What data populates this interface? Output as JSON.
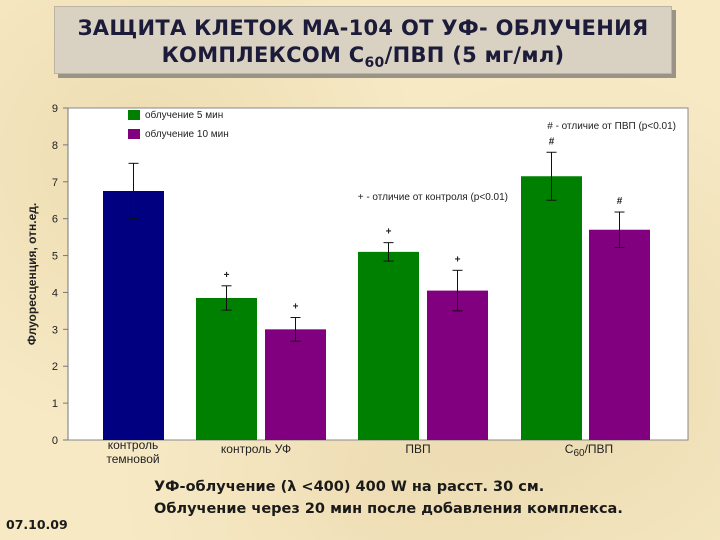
{
  "title": {
    "line1": "ЗАЩИТА КЛЕТОК МА-104 ОТ УФ- ОБЛУЧЕНИЯ",
    "line2_prefix": "КОМПЛЕКСОМ С",
    "line2_sub": "60",
    "line2_suffix": "/ПВП (5 мг/мл)"
  },
  "notes": {
    "line1": "УФ-облучение (λ <400) 400 W на расст. 30 см.",
    "line2": "Облучение через 20 мин после добавления комплекса."
  },
  "date": "07.10.09",
  "annotations": {
    "hash_note": "# - отличие от ПВП (p<0.01)",
    "plus_note": "+ - отличие от контроля (p<0.01)"
  },
  "colors": {
    "dark_blue": "#000080",
    "green": "#008000",
    "purple": "#800080"
  },
  "chart_data": {
    "type": "bar",
    "ylabel": "Флуоресценция, отн.ед.",
    "ylim": [
      0,
      9
    ],
    "yticks": [
      0,
      1,
      2,
      3,
      4,
      5,
      6,
      7,
      8,
      9
    ],
    "grid": false,
    "legend_position": "top-left",
    "categories": [
      "контроль темновой",
      "контроль УФ",
      "ПВП",
      "С60/ПВП"
    ],
    "legend": [
      "облучение 5 мин",
      "облучение 10 мин"
    ],
    "bars": [
      {
        "category": "контроль темновой",
        "series": null,
        "value": 6.75,
        "err": 0.75,
        "color": "dark_blue",
        "marker": ""
      },
      {
        "category": "контроль УФ",
        "series": "облучение 5 мин",
        "value": 3.85,
        "err": 0.33,
        "color": "green",
        "marker": "+"
      },
      {
        "category": "контроль УФ",
        "series": "облучение 10 мин",
        "value": 3.0,
        "err": 0.32,
        "color": "purple",
        "marker": "+"
      },
      {
        "category": "ПВП",
        "series": "облучение 5 мин",
        "value": 5.1,
        "err": 0.25,
        "color": "green",
        "marker": "+"
      },
      {
        "category": "ПВП",
        "series": "облучение 10 мин",
        "value": 4.05,
        "err": 0.55,
        "color": "purple",
        "marker": "+"
      },
      {
        "category": "С60/ПВП",
        "series": "облучение 5 мин",
        "value": 7.15,
        "err": 0.65,
        "color": "green",
        "marker": "#"
      },
      {
        "category": "С60/ПВП",
        "series": "облучение 10 мин",
        "value": 5.7,
        "err": 0.48,
        "color": "purple",
        "marker": "#"
      }
    ]
  }
}
